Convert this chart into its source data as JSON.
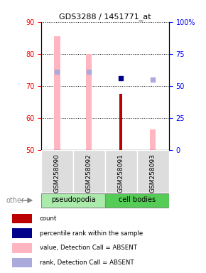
{
  "title": "GDS3288 / 1451771_at",
  "samples": [
    "GSM258090",
    "GSM258092",
    "GSM258091",
    "GSM258093"
  ],
  "ylim_left": [
    50,
    90
  ],
  "ylim_right": [
    0,
    100
  ],
  "yticks_left": [
    50,
    60,
    70,
    80,
    90
  ],
  "yticks_right": [
    0,
    25,
    50,
    75,
    100
  ],
  "bar_width": 0.18,
  "value_bars": [
    85.5,
    80.0,
    null,
    56.5
  ],
  "value_bar_color": "#FFB6C1",
  "count_bars": [
    null,
    null,
    67.5,
    null
  ],
  "count_bar_color": "#BB0000",
  "percentile_squares": [
    null,
    null,
    72.5,
    null
  ],
  "percentile_color": "#00008B",
  "rank_squares": [
    74.5,
    74.5,
    null,
    72.0
  ],
  "rank_color": "#AAAADD",
  "group_spans": [
    {
      "label": "pseudopodia",
      "c0": 0,
      "c1": 1,
      "color": "#AAEAAA"
    },
    {
      "label": "cell bodies",
      "c0": 2,
      "c1": 3,
      "color": "#55CC55"
    }
  ],
  "sample_box_color": "#DDDDDD",
  "other_label": "other",
  "legend_items": [
    {
      "color": "#BB0000",
      "label": "count"
    },
    {
      "color": "#00008B",
      "label": "percentile rank within the sample"
    },
    {
      "color": "#FFB6C1",
      "label": "value, Detection Call = ABSENT"
    },
    {
      "color": "#AAAADD",
      "label": "rank, Detection Call = ABSENT"
    }
  ]
}
